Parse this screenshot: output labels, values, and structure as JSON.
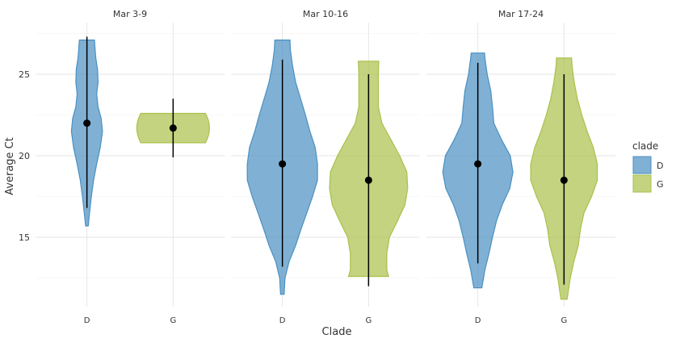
{
  "chart_data": {
    "type": "violin",
    "xlabel": "Clade",
    "ylabel": "Average Ct",
    "ylim": [
      11.0,
      28.0
    ],
    "yticks": [
      15,
      20,
      25
    ],
    "categories": [
      "D",
      "G"
    ],
    "grid": true,
    "legend": {
      "title": "clade",
      "position": "right",
      "entries": [
        {
          "label": "D",
          "color": "#4a90c2"
        },
        {
          "label": "G",
          "color": "#a9c14a"
        }
      ]
    },
    "panels": [
      {
        "title": "Mar 3-9",
        "groups": [
          {
            "clade": "D",
            "median": 22.0,
            "whisker": [
              16.8,
              27.3
            ],
            "profile": [
              [
                15.7,
                0.03
              ],
              [
                16.5,
                0.06
              ],
              [
                17.5,
                0.1
              ],
              [
                18.5,
                0.15
              ],
              [
                19.5,
                0.22
              ],
              [
                20.5,
                0.3
              ],
              [
                21.5,
                0.35
              ],
              [
                22.3,
                0.32
              ],
              [
                23.0,
                0.25
              ],
              [
                23.8,
                0.22
              ],
              [
                24.5,
                0.25
              ],
              [
                25.3,
                0.24
              ],
              [
                26.0,
                0.2
              ],
              [
                26.7,
                0.18
              ],
              [
                27.1,
                0.17
              ]
            ]
          },
          {
            "clade": "G",
            "median": 21.7,
            "whisker": [
              19.9,
              23.5
            ],
            "profile": [
              [
                20.8,
                1.0
              ],
              [
                21.0,
                1.0
              ],
              [
                21.3,
                1.0
              ],
              [
                21.7,
                1.0
              ],
              [
                22.0,
                1.0
              ],
              [
                22.3,
                1.0
              ],
              [
                22.6,
                1.0
              ]
            ]
          }
        ]
      },
      {
        "title": "Mar 10-16",
        "groups": [
          {
            "clade": "D",
            "median": 19.5,
            "whisker": [
              13.2,
              25.9
            ],
            "profile": [
              [
                11.5,
                0.04
              ],
              [
                12.5,
                0.06
              ],
              [
                13.5,
                0.15
              ],
              [
                14.5,
                0.3
              ],
              [
                15.5,
                0.42
              ],
              [
                16.5,
                0.55
              ],
              [
                17.5,
                0.68
              ],
              [
                18.5,
                0.79
              ],
              [
                19.5,
                0.79
              ],
              [
                20.5,
                0.74
              ],
              [
                21.5,
                0.62
              ],
              [
                22.5,
                0.52
              ],
              [
                23.5,
                0.41
              ],
              [
                24.5,
                0.3
              ],
              [
                25.5,
                0.23
              ],
              [
                26.5,
                0.18
              ],
              [
                27.1,
                0.17
              ]
            ]
          },
          {
            "clade": "G",
            "median": 18.5,
            "whisker": [
              12.0,
              25.0
            ],
            "profile": [
              [
                12.6,
                0.45
              ],
              [
                13.0,
                0.41
              ],
              [
                14.0,
                0.41
              ],
              [
                15.0,
                0.47
              ],
              [
                16.0,
                0.65
              ],
              [
                17.0,
                0.82
              ],
              [
                18.0,
                0.88
              ],
              [
                19.0,
                0.86
              ],
              [
                20.0,
                0.7
              ],
              [
                21.0,
                0.5
              ],
              [
                22.0,
                0.3
              ],
              [
                23.0,
                0.22
              ],
              [
                24.0,
                0.22
              ],
              [
                25.0,
                0.22
              ],
              [
                25.8,
                0.23
              ]
            ]
          }
        ]
      },
      {
        "title": "Mar 17-24",
        "groups": [
          {
            "clade": "D",
            "median": 19.5,
            "whisker": [
              13.4,
              25.7
            ],
            "profile": [
              [
                11.9,
                0.09
              ],
              [
                13.0,
                0.16
              ],
              [
                14.0,
                0.25
              ],
              [
                15.0,
                0.33
              ],
              [
                16.0,
                0.42
              ],
              [
                17.0,
                0.55
              ],
              [
                18.0,
                0.72
              ],
              [
                19.0,
                0.79
              ],
              [
                20.0,
                0.73
              ],
              [
                21.0,
                0.53
              ],
              [
                22.0,
                0.36
              ],
              [
                23.0,
                0.33
              ],
              [
                24.0,
                0.29
              ],
              [
                25.0,
                0.21
              ],
              [
                26.0,
                0.16
              ],
              [
                26.3,
                0.15
              ]
            ]
          },
          {
            "clade": "G",
            "median": 18.5,
            "whisker": [
              12.1,
              25.0
            ],
            "profile": [
              [
                11.2,
                0.07
              ],
              [
                12.5,
                0.14
              ],
              [
                13.5,
                0.22
              ],
              [
                14.5,
                0.32
              ],
              [
                15.5,
                0.37
              ],
              [
                16.5,
                0.45
              ],
              [
                17.5,
                0.62
              ],
              [
                18.5,
                0.75
              ],
              [
                19.5,
                0.75
              ],
              [
                20.5,
                0.66
              ],
              [
                21.5,
                0.52
              ],
              [
                22.5,
                0.4
              ],
              [
                23.5,
                0.3
              ],
              [
                24.5,
                0.23
              ],
              [
                25.5,
                0.18
              ],
              [
                26.0,
                0.17
              ]
            ]
          }
        ]
      }
    ]
  }
}
